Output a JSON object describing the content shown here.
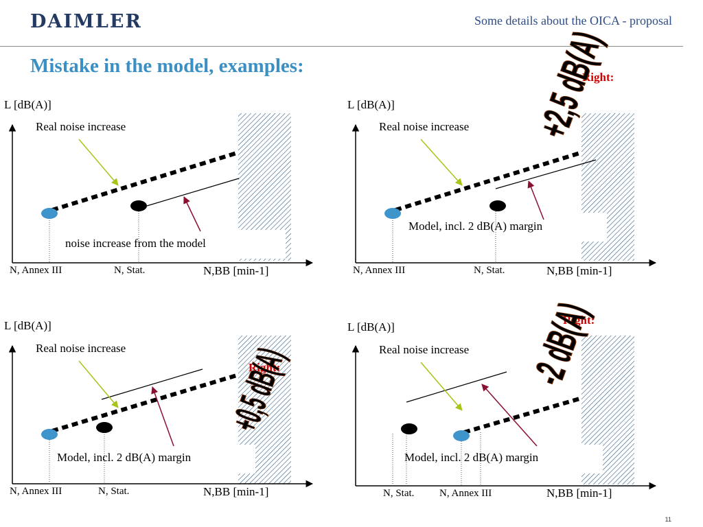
{
  "header": {
    "logo": "DAIMLER",
    "subtitle": "Some details about the OICA - proposal"
  },
  "title": "Mistake in the model, examples:",
  "page_number": "11",
  "colors": {
    "real_noise_arrow": "#a8c418",
    "model_arrow": "#8b1030",
    "annex_point": "#3e95cc",
    "stat_point": "#000000",
    "right_label": "#cc0000",
    "big_text_fill_top": "#ffee00",
    "big_text_fill_bottom": "#e02000"
  },
  "panels": [
    {
      "y_axis": "L [dB(A)]",
      "x_axis": "N,BB [min-1]",
      "real_noise": "Real noise increase",
      "model_text": "noise increase from the model",
      "tick_a": "N, Annex III",
      "tick_b": "N, Stat.",
      "right_label": "",
      "big_value": ""
    },
    {
      "y_axis": "L [dB(A)]",
      "x_axis": "N,BB [min-1]",
      "real_noise": "Real noise increase",
      "model_text": "Model, incl. 2 dB(A) margin",
      "tick_a": "N, Annex III",
      "tick_b": "N, Stat.",
      "right_label": "Right:",
      "big_value": "+2,5 dB(A)"
    },
    {
      "y_axis": "L [dB(A)]",
      "x_axis": "N,BB [min-1]",
      "real_noise": "Real noise increase",
      "model_text": "Model, incl. 2 dB(A) margin",
      "tick_a": "N, Annex III",
      "tick_b": "N, Stat.",
      "right_label": "Right:",
      "big_value": "+0,5 dB(A)"
    },
    {
      "y_axis": "L [dB(A)]",
      "x_axis": "N,BB [min-1]",
      "real_noise": "Real noise increase",
      "model_text": "Model, incl. 2 dB(A) margin",
      "tick_a": "N, Stat.",
      "tick_b": "N, Annex III",
      "right_label": "Right:",
      "big_value": "-2 dB(A)"
    }
  ]
}
